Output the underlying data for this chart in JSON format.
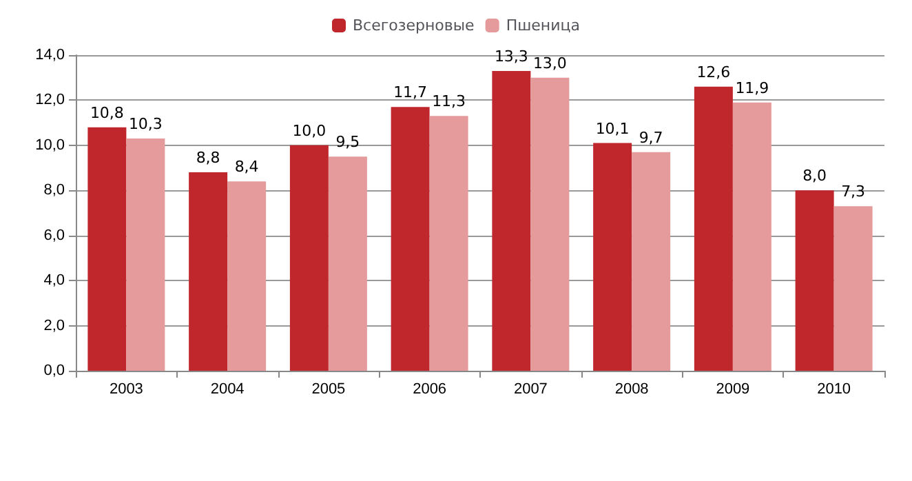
{
  "chart_data": {
    "type": "bar",
    "categories": [
      "2003",
      "2004",
      "2005",
      "2006",
      "2007",
      "2008",
      "2009",
      "2010"
    ],
    "series": [
      {
        "name": "Всегозерновые",
        "color": "#c0272d",
        "values": [
          10.8,
          8.8,
          10.0,
          11.7,
          13.3,
          10.1,
          12.6,
          8.0
        ],
        "value_labels": [
          "10,8",
          "8,8",
          "10,0",
          "11,7",
          "13,3",
          "10,1",
          "12,6",
          "8,0"
        ]
      },
      {
        "name": "Пшеница",
        "color": "#e59b9b",
        "values": [
          10.3,
          8.4,
          9.5,
          11.3,
          13.0,
          9.7,
          11.9,
          7.3
        ],
        "value_labels": [
          "10,3",
          "8,4",
          "9,5",
          "11,3",
          "13,0",
          "9,7",
          "11,9",
          "7,3"
        ]
      }
    ],
    "ylim": [
      0,
      14
    ],
    "yticks": [
      {
        "value": 0,
        "label": "0,0"
      },
      {
        "value": 2,
        "label": "2,0"
      },
      {
        "value": 4,
        "label": "4,0"
      },
      {
        "value": 6,
        "label": "6,0"
      },
      {
        "value": 8,
        "label": "8,0"
      },
      {
        "value": 10,
        "label": "10,0"
      },
      {
        "value": 12,
        "label": "12,0"
      },
      {
        "value": 14,
        "label": "14,0"
      }
    ],
    "grid": "y",
    "legend": "top"
  }
}
